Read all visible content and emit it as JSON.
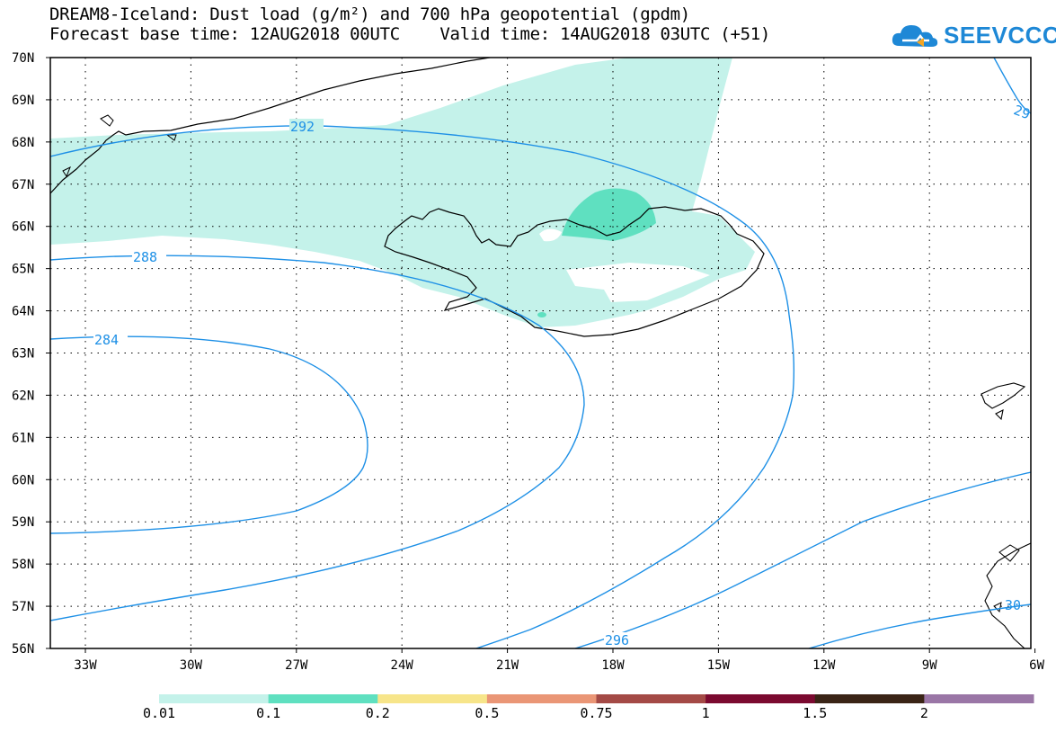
{
  "title": {
    "line1": "DREAM8-Iceland: Dust load (g/m²) and 700 hPa geopotential (gpdm)",
    "line2": "Forecast base time: 12AUG2018 00UTC    Valid time: 14AUG2018 03UTC (+51)"
  },
  "logo": {
    "text": "SEEVCCC",
    "icon": "cloud-icon"
  },
  "axes": {
    "lat_labels": [
      "70N",
      "69N",
      "68N",
      "67N",
      "66N",
      "65N",
      "64N",
      "63N",
      "62N",
      "61N",
      "60N",
      "59N",
      "58N",
      "57N",
      "56N"
    ],
    "lon_labels": [
      "33W",
      "30W",
      "27W",
      "24W",
      "21W",
      "18W",
      "15W",
      "12W",
      "9W",
      "6W"
    ]
  },
  "contour_labels": [
    "292",
    "288",
    "284",
    "296",
    "29",
    "30"
  ],
  "colorbar": {
    "labels": [
      "0.01",
      "0.1",
      "0.2",
      "0.5",
      "0.75",
      "1",
      "1.5",
      "2"
    ],
    "colors": [
      "#c4f2ea",
      "#5fe0c0",
      "#f7e58a",
      "#ea9676",
      "#a44a46",
      "#7b0a30",
      "#3a2416",
      "#9a76a6"
    ]
  },
  "colors": {
    "contour": "#1e90e6",
    "coast": "#000000",
    "dust_low": "#c4f2ea",
    "dust_mid": "#5fe0c0"
  }
}
